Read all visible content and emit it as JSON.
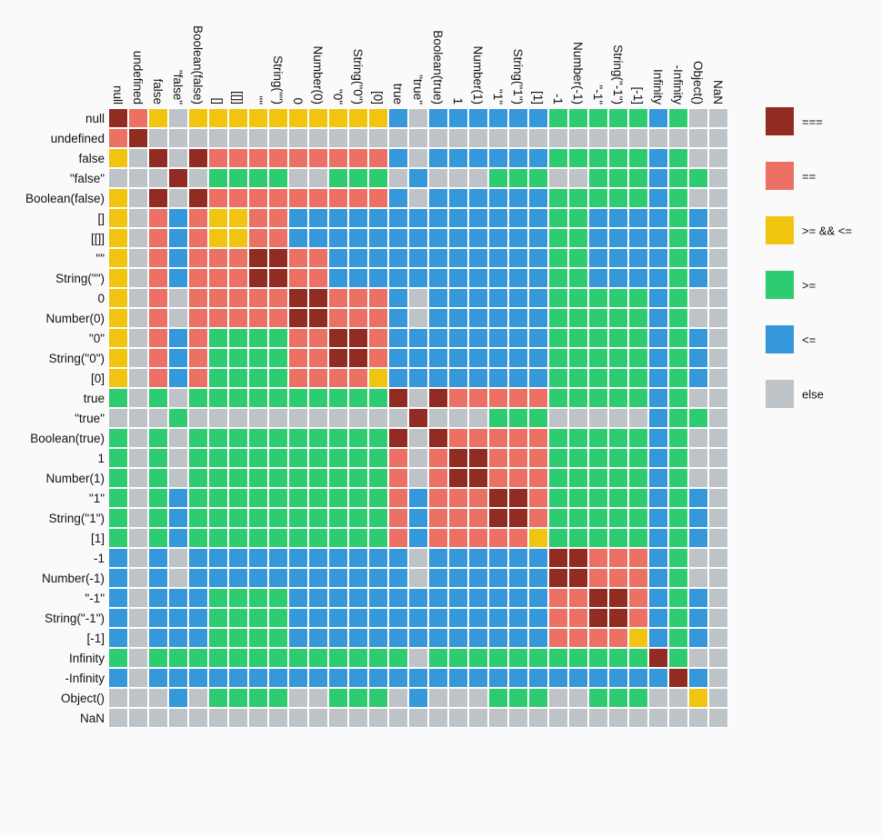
{
  "chart_data": {
    "type": "heatmap",
    "title": "",
    "labels": [
      "null",
      "undefined",
      "false",
      "\"false\"",
      "Boolean(false)",
      "[]",
      "[[]]",
      "\"\"",
      "String(\"\")",
      "0",
      "Number(0)",
      "\"0\"",
      "String(\"0\")",
      "[0]",
      "true",
      "\"true\"",
      "Boolean(true)",
      "1",
      "Number(1)",
      "\"1\"",
      "String(\"1\")",
      "[1]",
      "-1",
      "Number(-1)",
      "\"-1\"",
      "String(\"-1\")",
      "[-1]",
      "Infinity",
      "-Infinity",
      "Object()",
      "NaN"
    ],
    "legend": [
      {
        "key": "S",
        "label": "===",
        "color": "#922b21"
      },
      {
        "key": "E",
        "label": "==",
        "color": "#ec7063"
      },
      {
        "key": "Y",
        "label": ">= && <=",
        "color": "#f1c40f"
      },
      {
        "key": "G",
        "label": ">=",
        "color": "#2ecc71"
      },
      {
        "key": "B",
        "label": "<=",
        "color": "#3498db"
      },
      {
        "key": "X",
        "label": "else",
        "color": "#bdc3c7"
      }
    ],
    "matrix": [
      "SEYXYYYYYYYYYYBXBBBBBBGGGGGBGXX",
      "ESXXXXXXXXXXXXXXXXXXXXXXXXXXXXX",
      "YXSXSEEEEEEEEEBXBBBBBBGGGGGBGXX",
      "XXXSXGGGGXXGGGXBXXXGGGXXGGGBGGX",
      "YXSXSEEEEEEEEEBXBBBBBBGGGGGBGXX",
      "YXEBEYYEEBBBBBBBBBBBBBGGBBBBGBX",
      "YXEBEYYEEBBBBBBBBBBBBBGGBBBBGBX",
      "YXEBEEESSEEBBBBBBBBBBBGGBBBBGBX",
      "YXEBEEESSEEBBBBBBBBBBBGGBBBBGBX",
      "YXEXEEEEESSEEEBXBBBBBBGGGGGBGXX",
      "YXEXEEEEESSEEEBXBBBBBBGGGGGBGXX",
      "YXEBEGGGGEESSEBBBBBBBBGGGGGBGBX",
      "YXEBEGGGGEESSEBBBBBBBBGGGGGBGBX",
      "YXEBEGGGGEEEEYBBBBBBBBGGGGGBGBX",
      "GXGXGGGGGGGGGGSXSEEEEEGGGGGBGXX",
      "XXXGXXXXXXXXXXXSXXXGGGXXXXXBGGX",
      "GXGXGGGGGGGGGGSXSEEEEEGGGGGBGXX",
      "GXGXGGGGGGGGGGEXESSEEEGGGGGBGXX",
      "GXGXGGGGGGGGGGEXESSEEEGGGGGBGXX",
      "GXGBGGGGGGGGGGEBEEESSEGGGGGBGBX",
      "GXGBGGGGGGGGGGEBEEESSEGGGGGBGBX",
      "GXGBGGGGGGGGGGEBEEEEEYGGGGGBGBX",
      "BXBXBBBBBBBBBBBXBBBBBBSSEEEBGXX",
      "BXBXBBBBBBBBBBBXBBBBBBSSEEEBGXX",
      "BXBBBGGGGBBBBBBBBBBBBBEESSEBGBX",
      "BXBBBGGGGBBBBBBBBBBBBBEESSEBGBX",
      "BXBBBGGGGBBBBBBBBBBBBBEEEEYBGBX",
      "GXGGGGGGGGGGGGGXGGGGGGGGGGGSGXX",
      "BXBBBBBBBBBBBBBBBBBBBBBBBBBBSBX",
      "XXXBXGGGGXXGGGXBXXXGGGXXGGGXXYX",
      "XXXXXXXXXXXXXXXXXXXXXXXXXXXXXXX"
    ]
  }
}
